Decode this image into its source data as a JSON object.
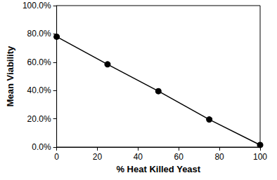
{
  "chart_data": {
    "type": "line",
    "x_label": "% Heat Killed Yeast",
    "y_label": "Mean Viability",
    "x": [
      0,
      25,
      50,
      75,
      100
    ],
    "values": [
      78,
      58.5,
      39.5,
      19.5,
      1.5
    ],
    "color": "#000000",
    "marker": "circle",
    "line_style": "solid",
    "xlim": [
      0,
      100
    ],
    "xticks": [
      0,
      20,
      40,
      60,
      80,
      100
    ],
    "ylim": [
      0,
      100
    ],
    "yticks": [
      {
        "value": 0,
        "label": "0.0%"
      },
      {
        "value": 20,
        "label": "20.0%"
      },
      {
        "value": 40,
        "label": "40.0%"
      },
      {
        "value": 60,
        "label": "60.0%"
      },
      {
        "value": 80,
        "label": "80.0%"
      },
      {
        "value": 100,
        "label": "100.0%"
      }
    ],
    "grid": false
  }
}
